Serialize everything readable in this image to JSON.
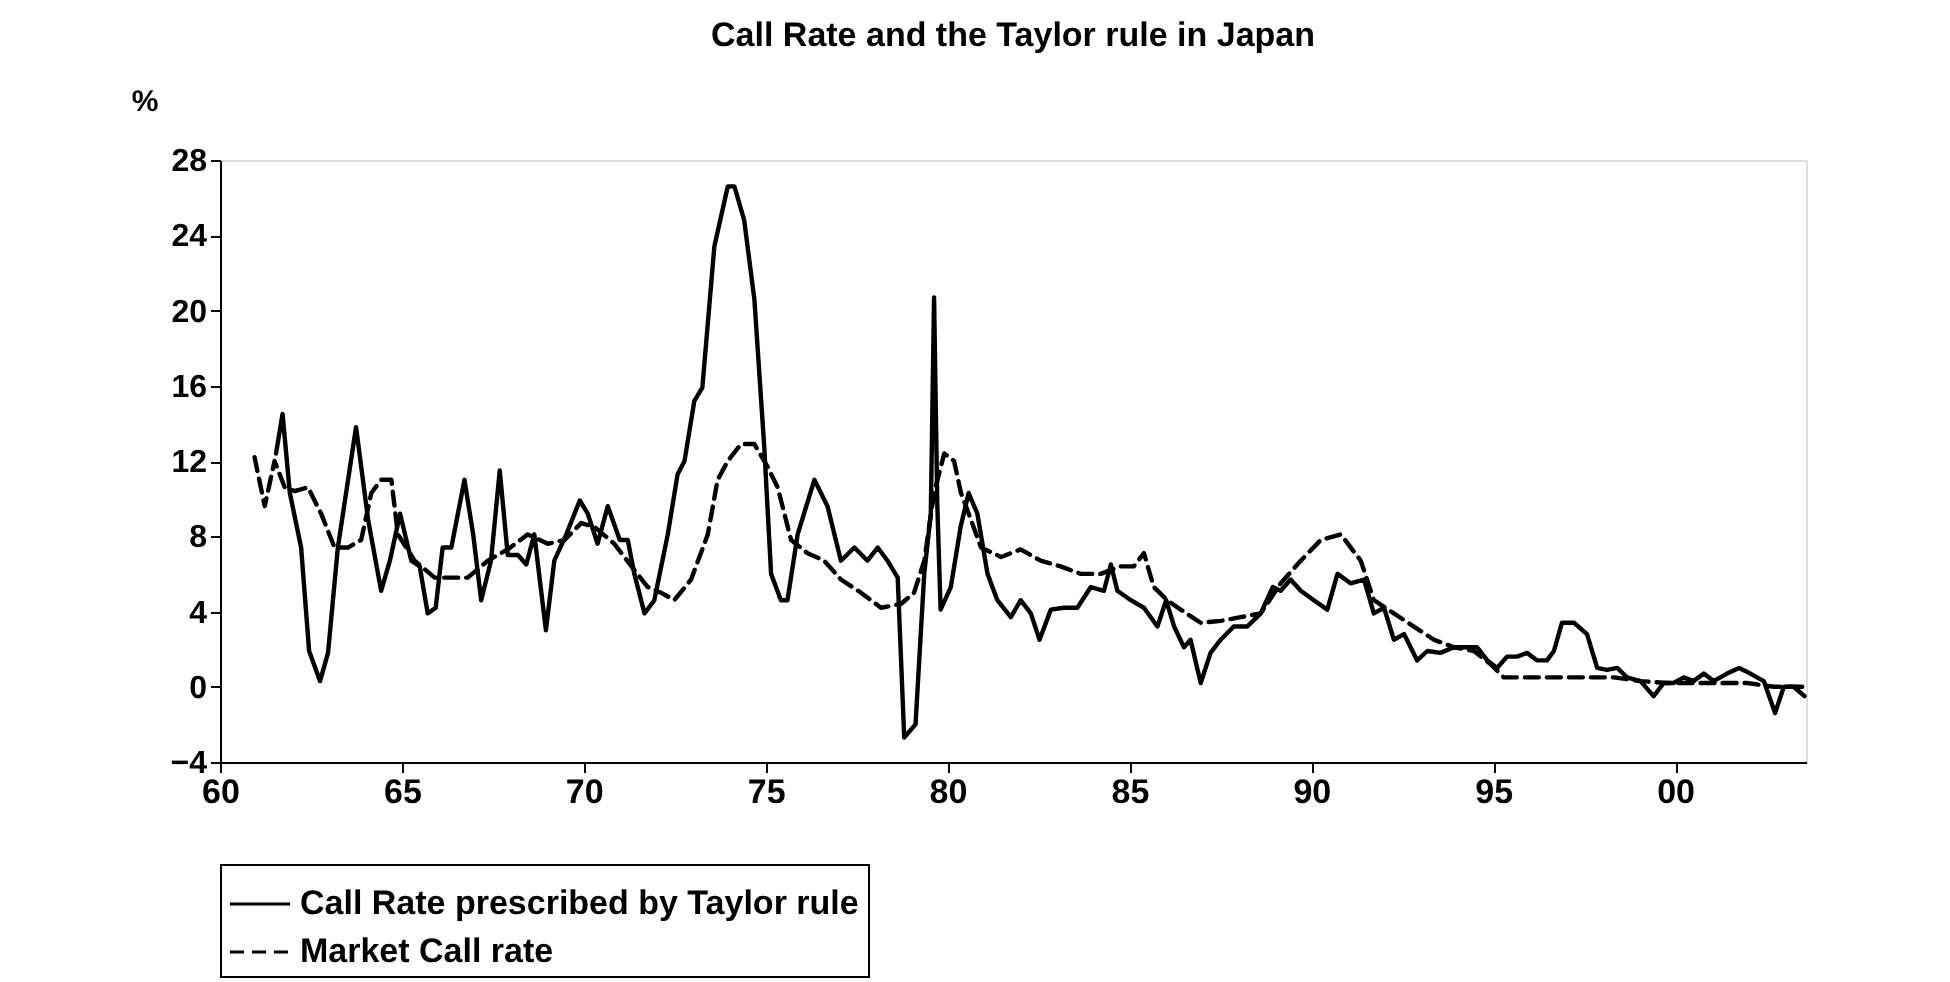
{
  "chart_data": {
    "type": "line",
    "title": "Call Rate and the Taylor rule in Japan",
    "ylabel": "%",
    "xlim": [
      1960,
      2003.6
    ],
    "ylim": [
      -4,
      28
    ],
    "xticks": [
      {
        "value": 1960,
        "label": "60"
      },
      {
        "value": 1965,
        "label": "65"
      },
      {
        "value": 1970,
        "label": "70"
      },
      {
        "value": 1975,
        "label": "75"
      },
      {
        "value": 1980,
        "label": "80"
      },
      {
        "value": 1985,
        "label": "85"
      },
      {
        "value": 1990,
        "label": "90"
      },
      {
        "value": 1995,
        "label": "95"
      },
      {
        "value": 2000,
        "label": "00"
      }
    ],
    "yticks": [
      -4,
      0,
      4,
      8,
      12,
      16,
      20,
      24,
      28
    ],
    "grid": false,
    "legend": "bottom",
    "series": [
      {
        "name": "Call Rate prescribed by Taylor rule",
        "color": "#000000",
        "line_style": "solid",
        "type": "line",
        "x": [
          1961.54,
          1961.72,
          1961.92,
          1962.23,
          1962.45,
          1962.75,
          1962.97,
          1963.24,
          1963.74,
          1964.07,
          1964.43,
          1964.67,
          1964.95,
          1965.26,
          1965.49,
          1965.71,
          1965.93,
          1966.12,
          1966.36,
          1966.72,
          1966.96,
          1967.18,
          1967.45,
          1967.69,
          1967.91,
          1968.19,
          1968.42,
          1968.64,
          1968.96,
          1969.19,
          1969.52,
          1969.89,
          1970.11,
          1970.38,
          1970.66,
          1970.99,
          1971.21,
          1971.39,
          1971.67,
          1971.94,
          1972.31,
          1972.58,
          1972.77,
          1973.04,
          1973.26,
          1973.59,
          1973.96,
          1974.14,
          1974.41,
          1974.69,
          1974.96,
          1975.15,
          1975.42,
          1975.6,
          1975.88,
          1976.34,
          1976.7,
          1977.07,
          1977.44,
          1977.8,
          1978.08,
          1978.35,
          1978.63,
          1978.81,
          1979.12,
          1979.36,
          1979.54,
          1979.63,
          1979.72,
          1979.81,
          1980.09,
          1980.36,
          1980.58,
          1980.82,
          1981.1,
          1981.37,
          1981.74,
          1982.01,
          1982.29,
          1982.53,
          1982.84,
          1983.2,
          1983.57,
          1983.94,
          1984.3,
          1984.49,
          1984.67,
          1985.04,
          1985.4,
          1985.77,
          1986.01,
          1986.23,
          1986.5,
          1986.68,
          1986.96,
          1987.23,
          1987.51,
          1987.87,
          1988.24,
          1988.61,
          1988.94,
          1989.16,
          1989.43,
          1989.71,
          1990.07,
          1990.44,
          1990.72,
          1991.08,
          1991.45,
          1991.72,
          1992.0,
          1992.27,
          1992.55,
          1992.91,
          1993.19,
          1993.55,
          1993.92,
          1994.29,
          1994.56,
          1994.84,
          1995.11,
          1995.38,
          1995.66,
          1995.93,
          1996.21,
          1996.48,
          1996.67,
          1996.89,
          1997.22,
          1997.58,
          1997.86,
          1998.13,
          1998.41,
          1998.68,
          1999.05,
          1999.41,
          1999.69,
          1999.96,
          2000.24,
          2000.51,
          2000.79,
          2001.06,
          2001.43,
          2001.76,
          2002.07,
          2002.44,
          2002.75,
          2002.99,
          2003.26,
          2003.56
        ],
        "values": [
          12.4,
          14.5,
          10.3,
          7.4,
          1.9,
          0.3,
          1.8,
          7.4,
          13.8,
          8.9,
          5.1,
          6.7,
          9.2,
          6.7,
          6.4,
          3.9,
          4.2,
          7.4,
          7.4,
          11.0,
          8.1,
          4.6,
          6.7,
          11.5,
          7.0,
          7.0,
          6.5,
          8.1,
          3.0,
          6.7,
          8.1,
          9.9,
          9.2,
          7.6,
          9.6,
          7.8,
          7.8,
          6.0,
          3.9,
          4.6,
          8.1,
          11.3,
          12.0,
          15.2,
          15.9,
          23.4,
          26.6,
          26.6,
          24.8,
          20.6,
          12.8,
          6.0,
          4.6,
          4.6,
          8.1,
          11.0,
          9.6,
          6.7,
          7.4,
          6.7,
          7.4,
          6.7,
          5.8,
          -2.7,
          -2.0,
          6.0,
          9.2,
          20.7,
          9.6,
          4.1,
          5.3,
          8.5,
          10.3,
          9.2,
          6.0,
          4.6,
          3.7,
          4.6,
          3.9,
          2.5,
          4.1,
          4.2,
          4.2,
          5.3,
          5.1,
          6.5,
          5.1,
          4.6,
          4.2,
          3.2,
          4.6,
          3.2,
          2.1,
          2.5,
          0.2,
          1.8,
          2.5,
          3.2,
          3.2,
          3.9,
          5.3,
          5.1,
          5.7,
          5.1,
          4.6,
          4.1,
          6.0,
          5.5,
          5.7,
          3.9,
          4.2,
          2.5,
          2.8,
          1.4,
          1.9,
          1.8,
          2.1,
          2.1,
          2.1,
          1.4,
          1.0,
          1.6,
          1.6,
          1.8,
          1.4,
          1.4,
          1.9,
          3.4,
          3.4,
          2.8,
          1.0,
          0.9,
          1.0,
          0.5,
          0.3,
          -0.5,
          0.2,
          0.2,
          0.5,
          0.3,
          0.7,
          0.3,
          0.7,
          1.0,
          0.7,
          0.3,
          -1.4,
          0.0,
          0.0,
          -0.5
        ]
      },
      {
        "name": "Market Call rate",
        "color": "#000000",
        "line_style": "dashed",
        "type": "line",
        "x": [
          1960.95,
          1961.23,
          1961.5,
          1961.78,
          1962.05,
          1962.42,
          1962.78,
          1963.15,
          1963.52,
          1963.88,
          1964.16,
          1964.43,
          1964.71,
          1964.89,
          1965.35,
          1965.9,
          1966.81,
          1967.36,
          1967.91,
          1968.46,
          1969.01,
          1969.47,
          1969.93,
          1970.29,
          1970.84,
          1971.39,
          1971.76,
          1972.12,
          1972.49,
          1972.95,
          1973.41,
          1973.68,
          1973.96,
          1974.32,
          1974.69,
          1975.05,
          1975.33,
          1975.7,
          1976.15,
          1976.61,
          1977.07,
          1977.62,
          1978.17,
          1978.72,
          1979.08,
          1979.36,
          1979.63,
          1979.91,
          1980.18,
          1980.37,
          1980.64,
          1980.92,
          1981.47,
          1982.01,
          1982.56,
          1983.11,
          1983.66,
          1984.21,
          1984.76,
          1985.12,
          1985.4,
          1985.67,
          1986.04,
          1986.41,
          1986.96,
          1987.51,
          1988.06,
          1988.61,
          1989.16,
          1989.71,
          1990.26,
          1990.81,
          1991.36,
          1991.72,
          1992.27,
          1992.82,
          1993.37,
          1993.92,
          1994.47,
          1994.93,
          1995.29,
          1996.12,
          1997.22,
          1998.32,
          1999.05,
          1999.78,
          2000.88,
          2001.98,
          2002.71,
          2003.56
        ],
        "values": [
          12.2,
          9.6,
          12.0,
          10.6,
          10.4,
          10.6,
          9.2,
          7.4,
          7.4,
          7.8,
          10.3,
          11.0,
          11.0,
          8.1,
          6.7,
          5.8,
          5.8,
          6.7,
          7.3,
          8.1,
          7.6,
          7.8,
          8.7,
          8.5,
          7.6,
          6.2,
          5.3,
          5.0,
          4.6,
          5.7,
          8.1,
          11.0,
          12.0,
          12.9,
          12.9,
          11.7,
          10.6,
          7.8,
          7.1,
          6.7,
          5.7,
          5.0,
          4.2,
          4.4,
          5.0,
          6.7,
          10.3,
          12.4,
          12.0,
          10.3,
          8.9,
          7.4,
          6.9,
          7.3,
          6.7,
          6.4,
          6.0,
          6.0,
          6.4,
          6.4,
          7.1,
          5.3,
          4.6,
          4.1,
          3.4,
          3.5,
          3.7,
          3.9,
          5.5,
          6.7,
          7.8,
          8.1,
          6.7,
          4.6,
          3.9,
          3.2,
          2.5,
          2.1,
          1.9,
          1.2,
          0.5,
          0.5,
          0.5,
          0.5,
          0.3,
          0.2,
          0.2,
          0.2,
          0.0,
          0.0
        ]
      }
    ]
  }
}
